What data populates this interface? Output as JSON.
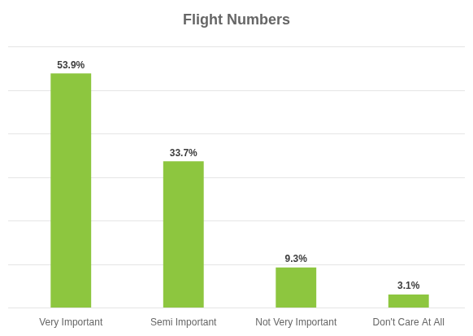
{
  "chart_data": {
    "type": "bar",
    "title": "Flight Numbers",
    "categories": [
      "Very Important",
      "Semi Important",
      "Not Very Important",
      "Don't Care At All"
    ],
    "values": [
      53.9,
      33.7,
      9.3,
      3.1
    ],
    "value_labels": [
      "53.9%",
      "33.7%",
      "9.3%",
      "3.1%"
    ],
    "color": "#8dc63f",
    "ylim": [
      0,
      60
    ],
    "yticks": [
      0,
      10,
      20,
      30,
      40,
      50,
      60
    ],
    "grid": true,
    "data_labels": true,
    "tick_labels": "x"
  }
}
